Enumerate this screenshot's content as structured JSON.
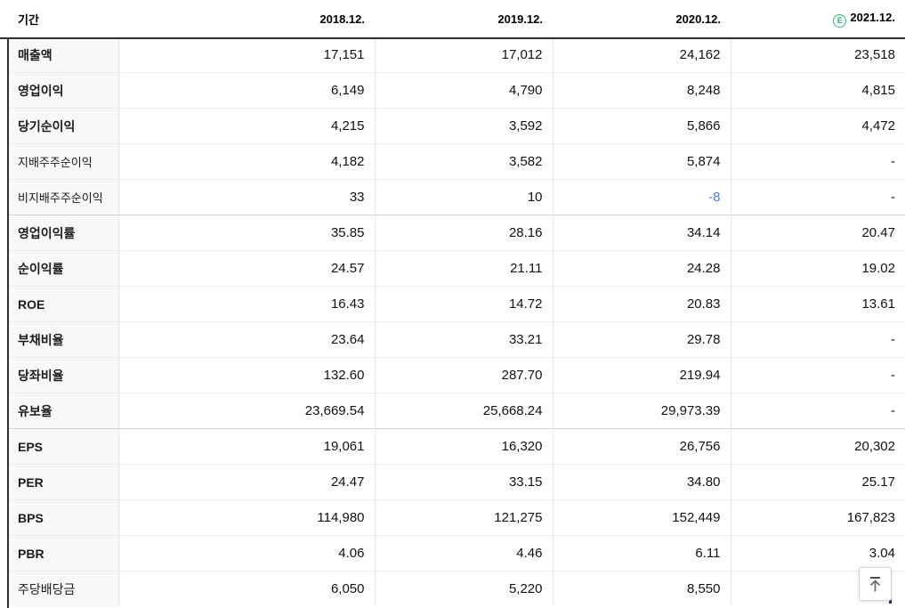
{
  "table": {
    "header": {
      "period_label": "기간",
      "columns": [
        "2018.12.",
        "2019.12.",
        "2020.12.",
        "2021.12."
      ],
      "estimate_icon": "E",
      "estimate_column_index": 3
    },
    "rows": [
      {
        "label": "매출액",
        "bold": true,
        "values": [
          "17,151",
          "17,012",
          "24,162",
          "23,518"
        ]
      },
      {
        "label": "영업이익",
        "bold": true,
        "values": [
          "6,149",
          "4,790",
          "8,248",
          "4,815"
        ]
      },
      {
        "label": "당기순이익",
        "bold": true,
        "values": [
          "4,215",
          "3,592",
          "5,866",
          "4,472"
        ]
      },
      {
        "label": "지배주주순이익",
        "bold": false,
        "sub": true,
        "values": [
          "4,182",
          "3,582",
          "5,874",
          "-"
        ]
      },
      {
        "label": "비지배주주순이익",
        "bold": false,
        "sub": true,
        "negative": [
          2
        ],
        "values": [
          "33",
          "10",
          "-8",
          "-"
        ]
      },
      {
        "label": "영업이익률",
        "bold": true,
        "group_start": true,
        "values": [
          "35.85",
          "28.16",
          "34.14",
          "20.47"
        ]
      },
      {
        "label": "순이익률",
        "bold": true,
        "values": [
          "24.57",
          "21.11",
          "24.28",
          "19.02"
        ]
      },
      {
        "label": "ROE",
        "bold": true,
        "values": [
          "16.43",
          "14.72",
          "20.83",
          "13.61"
        ]
      },
      {
        "label": "부채비율",
        "bold": true,
        "values": [
          "23.64",
          "33.21",
          "29.78",
          "-"
        ]
      },
      {
        "label": "당좌비율",
        "bold": true,
        "values": [
          "132.60",
          "287.70",
          "219.94",
          "-"
        ]
      },
      {
        "label": "유보율",
        "bold": true,
        "values": [
          "23,669.54",
          "25,668.24",
          "29,973.39",
          "-"
        ]
      },
      {
        "label": "EPS",
        "bold": true,
        "group_start": true,
        "values": [
          "19,061",
          "16,320",
          "26,756",
          "20,302"
        ]
      },
      {
        "label": "PER",
        "bold": true,
        "values": [
          "24.47",
          "33.15",
          "34.80",
          "25.17"
        ]
      },
      {
        "label": "BPS",
        "bold": true,
        "values": [
          "114,980",
          "121,275",
          "152,449",
          "167,823"
        ]
      },
      {
        "label": "PBR",
        "bold": true,
        "values": [
          "4.06",
          "4.46",
          "6.11",
          "3.04"
        ]
      },
      {
        "label": "주당배당금",
        "bold": false,
        "values": [
          "6,050",
          "5,220",
          "8,550",
          ""
        ]
      }
    ]
  },
  "scroll_top_button": {
    "icon": "arrow-up-to-top"
  },
  "colors": {
    "estimate_green": "#2bb673",
    "negative_blue": "#4d7df2",
    "header_border_dark": "#2f2f2f",
    "group_separator": "#d2d2d2",
    "row_separator": "#ededed",
    "label_column_bg": "#f8f8f8"
  }
}
